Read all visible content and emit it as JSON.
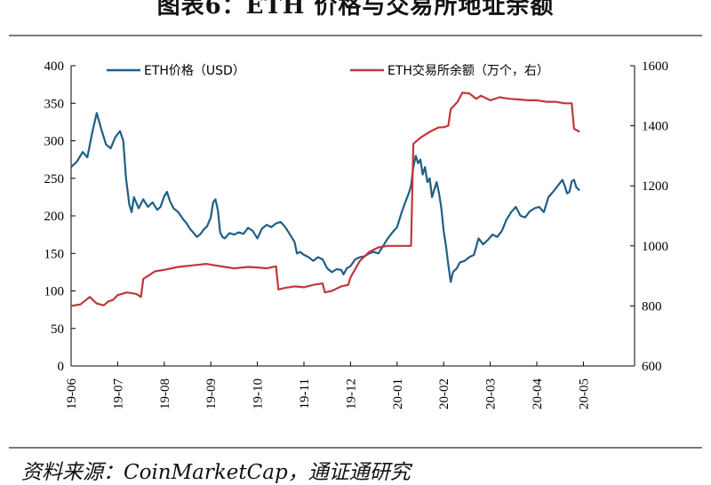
{
  "title": "图表6：ETH 价格与交易所地址余额",
  "source": "资料来源：CoinMarketCap，通证通研究",
  "chart_data": {
    "type": "line",
    "x_ticks": [
      "19-06",
      "19-07",
      "19-08",
      "19-09",
      "19-10",
      "19-11",
      "19-12",
      "20-01",
      "20-02",
      "20-03",
      "20-04",
      "20-05"
    ],
    "y_left": {
      "min": 0,
      "max": 400,
      "ticks": [
        0,
        50,
        100,
        150,
        200,
        250,
        300,
        350,
        400
      ]
    },
    "y_right": {
      "min": 600,
      "max": 1600,
      "ticks": [
        600,
        800,
        1000,
        1200,
        1400,
        1600
      ]
    },
    "legend_position": "top",
    "grid": false,
    "series": [
      {
        "name": "ETH价格（USD）",
        "axis": "left",
        "color": "#1f5f86",
        "points": [
          [
            0.0,
            265
          ],
          [
            0.12,
            272
          ],
          [
            0.25,
            285
          ],
          [
            0.35,
            278
          ],
          [
            0.45,
            310
          ],
          [
            0.55,
            337
          ],
          [
            0.65,
            315
          ],
          [
            0.75,
            295
          ],
          [
            0.85,
            290
          ],
          [
            0.95,
            305
          ],
          [
            1.05,
            313
          ],
          [
            1.12,
            300
          ],
          [
            1.18,
            250
          ],
          [
            1.25,
            215
          ],
          [
            1.3,
            205
          ],
          [
            1.35,
            225
          ],
          [
            1.45,
            210
          ],
          [
            1.55,
            222
          ],
          [
            1.65,
            212
          ],
          [
            1.75,
            218
          ],
          [
            1.85,
            208
          ],
          [
            1.92,
            212
          ],
          [
            2.0,
            226
          ],
          [
            2.06,
            232
          ],
          [
            2.12,
            220
          ],
          [
            2.2,
            210
          ],
          [
            2.3,
            205
          ],
          [
            2.4,
            196
          ],
          [
            2.48,
            190
          ],
          [
            2.55,
            183
          ],
          [
            2.62,
            178
          ],
          [
            2.7,
            172
          ],
          [
            2.78,
            176
          ],
          [
            2.85,
            182
          ],
          [
            2.92,
            186
          ],
          [
            3.0,
            198
          ],
          [
            3.05,
            218
          ],
          [
            3.1,
            222
          ],
          [
            3.15,
            208
          ],
          [
            3.2,
            178
          ],
          [
            3.25,
            172
          ],
          [
            3.3,
            170
          ],
          [
            3.4,
            177
          ],
          [
            3.5,
            175
          ],
          [
            3.6,
            178
          ],
          [
            3.7,
            176
          ],
          [
            3.8,
            184
          ],
          [
            3.9,
            180
          ],
          [
            4.0,
            170
          ],
          [
            4.1,
            183
          ],
          [
            4.2,
            188
          ],
          [
            4.3,
            185
          ],
          [
            4.4,
            190
          ],
          [
            4.5,
            192
          ],
          [
            4.6,
            185
          ],
          [
            4.7,
            175
          ],
          [
            4.8,
            165
          ],
          [
            4.85,
            150
          ],
          [
            4.92,
            152
          ],
          [
            5.0,
            148
          ],
          [
            5.1,
            145
          ],
          [
            5.2,
            140
          ],
          [
            5.3,
            145
          ],
          [
            5.4,
            142
          ],
          [
            5.5,
            130
          ],
          [
            5.6,
            125
          ],
          [
            5.7,
            129
          ],
          [
            5.8,
            128
          ],
          [
            5.85,
            122
          ],
          [
            5.92,
            130
          ],
          [
            6.0,
            133
          ],
          [
            6.1,
            142
          ],
          [
            6.2,
            145
          ],
          [
            6.3,
            146
          ],
          [
            6.4,
            150
          ],
          [
            6.5,
            152
          ],
          [
            6.6,
            150
          ],
          [
            6.7,
            160
          ],
          [
            6.8,
            170
          ],
          [
            6.9,
            178
          ],
          [
            7.0,
            185
          ],
          [
            7.1,
            205
          ],
          [
            7.2,
            222
          ],
          [
            7.25,
            230
          ],
          [
            7.3,
            240
          ],
          [
            7.35,
            265
          ],
          [
            7.4,
            280
          ],
          [
            7.45,
            270
          ],
          [
            7.5,
            275
          ],
          [
            7.55,
            255
          ],
          [
            7.6,
            265
          ],
          [
            7.65,
            245
          ],
          [
            7.7,
            250
          ],
          [
            7.75,
            225
          ],
          [
            7.8,
            235
          ],
          [
            7.85,
            245
          ],
          [
            7.9,
            230
          ],
          [
            7.95,
            210
          ],
          [
            8.0,
            180
          ],
          [
            8.05,
            160
          ],
          [
            8.1,
            135
          ],
          [
            8.15,
            112
          ],
          [
            8.2,
            125
          ],
          [
            8.28,
            130
          ],
          [
            8.35,
            138
          ],
          [
            8.45,
            140
          ],
          [
            8.55,
            145
          ],
          [
            8.65,
            148
          ],
          [
            8.75,
            170
          ],
          [
            8.85,
            162
          ],
          [
            8.95,
            168
          ],
          [
            9.05,
            175
          ],
          [
            9.15,
            172
          ],
          [
            9.25,
            180
          ],
          [
            9.35,
            195
          ],
          [
            9.45,
            205
          ],
          [
            9.55,
            212
          ],
          [
            9.65,
            200
          ],
          [
            9.75,
            198
          ],
          [
            9.85,
            206
          ],
          [
            9.95,
            210
          ],
          [
            10.05,
            212
          ],
          [
            10.15,
            205
          ],
          [
            10.25,
            225
          ],
          [
            10.35,
            232
          ],
          [
            10.45,
            240
          ],
          [
            10.55,
            248
          ],
          [
            10.6,
            240
          ],
          [
            10.65,
            230
          ],
          [
            10.7,
            232
          ],
          [
            10.75,
            246
          ],
          [
            10.8,
            248
          ],
          [
            10.85,
            238
          ],
          [
            10.92,
            234
          ]
        ]
      },
      {
        "name": "ETH交易所余额（万个，右）",
        "axis": "right",
        "color": "#c0373a",
        "points": [
          [
            0.0,
            800
          ],
          [
            0.2,
            805
          ],
          [
            0.4,
            830
          ],
          [
            0.55,
            808
          ],
          [
            0.7,
            802
          ],
          [
            0.8,
            815
          ],
          [
            0.9,
            820
          ],
          [
            1.0,
            836
          ],
          [
            1.2,
            845
          ],
          [
            1.4,
            840
          ],
          [
            1.5,
            830
          ],
          [
            1.55,
            890
          ],
          [
            1.7,
            905
          ],
          [
            1.8,
            915
          ],
          [
            2.0,
            920
          ],
          [
            2.3,
            930
          ],
          [
            2.6,
            935
          ],
          [
            2.9,
            940
          ],
          [
            3.1,
            935
          ],
          [
            3.3,
            930
          ],
          [
            3.5,
            925
          ],
          [
            3.8,
            930
          ],
          [
            4.0,
            928
          ],
          [
            4.2,
            925
          ],
          [
            4.4,
            932
          ],
          [
            4.45,
            855
          ],
          [
            4.6,
            860
          ],
          [
            4.8,
            865
          ],
          [
            5.0,
            862
          ],
          [
            5.2,
            870
          ],
          [
            5.4,
            875
          ],
          [
            5.45,
            845
          ],
          [
            5.6,
            850
          ],
          [
            5.8,
            865
          ],
          [
            5.95,
            870
          ],
          [
            6.0,
            895
          ],
          [
            6.2,
            950
          ],
          [
            6.4,
            980
          ],
          [
            6.6,
            995
          ],
          [
            6.8,
            1000
          ],
          [
            7.0,
            1000
          ],
          [
            7.2,
            1000
          ],
          [
            7.3,
            1000
          ],
          [
            7.35,
            1340
          ],
          [
            7.5,
            1360
          ],
          [
            7.7,
            1380
          ],
          [
            7.9,
            1395
          ],
          [
            8.0,
            1395
          ],
          [
            8.1,
            1400
          ],
          [
            8.15,
            1455
          ],
          [
            8.3,
            1480
          ],
          [
            8.4,
            1510
          ],
          [
            8.55,
            1508
          ],
          [
            8.7,
            1490
          ],
          [
            8.8,
            1500
          ],
          [
            9.0,
            1485
          ],
          [
            9.2,
            1495
          ],
          [
            9.4,
            1490
          ],
          [
            9.6,
            1488
          ],
          [
            9.8,
            1485
          ],
          [
            10.0,
            1485
          ],
          [
            10.2,
            1480
          ],
          [
            10.4,
            1480
          ],
          [
            10.6,
            1475
          ],
          [
            10.75,
            1475
          ],
          [
            10.8,
            1390
          ],
          [
            10.92,
            1380
          ]
        ]
      }
    ]
  }
}
